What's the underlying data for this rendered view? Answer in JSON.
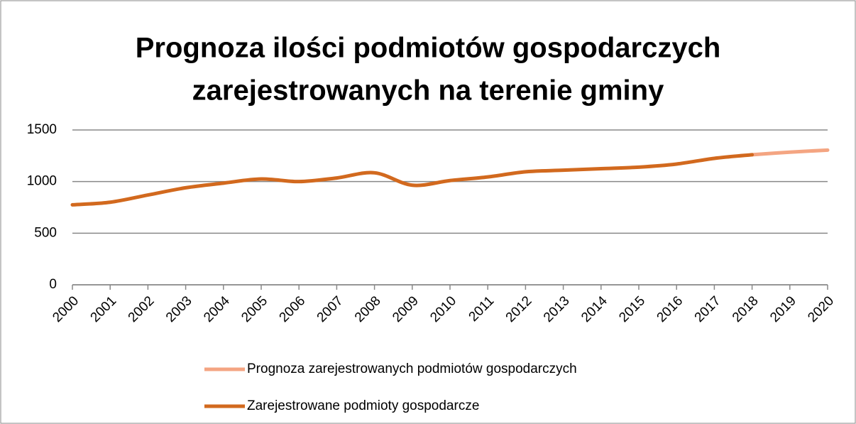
{
  "chart_data": {
    "type": "line",
    "title": [
      "Prognoza ilości podmiotów gospodarczych",
      "zarejestrowanych na terenie gminy"
    ],
    "categories": [
      "2000",
      "2001",
      "2002",
      "2003",
      "2004",
      "2005",
      "2006",
      "2007",
      "2008",
      "2009",
      "2010",
      "2011",
      "2012",
      "2013",
      "2014",
      "2015",
      "2016",
      "2017",
      "2018",
      "2019",
      "2020"
    ],
    "series": [
      {
        "name": "Prognoza zarejestrowanych podmiotów gospodarczych",
        "color": "#f4a582",
        "values": [
          null,
          null,
          null,
          null,
          null,
          null,
          null,
          null,
          null,
          null,
          null,
          null,
          null,
          null,
          null,
          null,
          null,
          null,
          1260,
          1285,
          1305
        ]
      },
      {
        "name": "Zarejestrowane podmioty gospodarcze",
        "color": "#d2691e",
        "values": [
          775,
          800,
          870,
          940,
          985,
          1025,
          1000,
          1035,
          1085,
          965,
          1010,
          1045,
          1095,
          1110,
          1125,
          1140,
          1170,
          1225,
          1260,
          null,
          null
        ]
      }
    ],
    "ylim": [
      0,
      1500
    ],
    "yticks": [
      0,
      500,
      1000,
      1500
    ],
    "grid": true,
    "smooth": true,
    "legend": "bottom"
  }
}
